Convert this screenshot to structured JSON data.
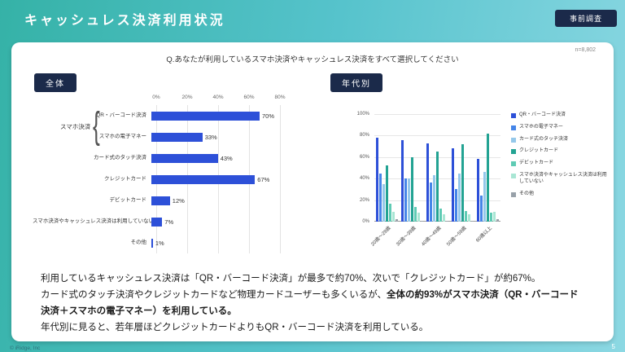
{
  "header": {
    "title": "キャッシュレス決済利用状況",
    "badge": "事前調査"
  },
  "card": {
    "question": "Q.あなたが利用しているスマホ決済やキャッシュレス決済をすべて選択してください",
    "sample": "n=8,802",
    "left_badge": "全体",
    "right_badge": "年代別"
  },
  "chart_data": [
    {
      "type": "bar",
      "orientation": "horizontal",
      "title": "全体",
      "group_label": "スマホ決済",
      "categories": [
        "QR・バーコード決済",
        "スマホの電子マネー",
        "カード式のタッチ決済",
        "クレジットカード",
        "デビットカード",
        "スマホ決済やキャッシュレス決済は利用していない",
        "その他"
      ],
      "values": [
        70,
        33,
        43,
        67,
        12,
        7,
        1
      ],
      "xlim": [
        0,
        80
      ],
      "xticks": [
        "0%",
        "20%",
        "40%",
        "60%",
        "80%"
      ],
      "bar_color": "#2d50d8",
      "grid": true
    },
    {
      "type": "bar",
      "orientation": "vertical-grouped",
      "title": "年代別",
      "categories": [
        "20歳～29歳",
        "30歳～39歳",
        "40歳～49歳",
        "50歳～59歳",
        "60歳以上"
      ],
      "series": [
        {
          "name": "QR・バーコード決済",
          "color": "#2d50d8",
          "values": [
            78,
            76,
            73,
            68,
            58
          ]
        },
        {
          "name": "スマホの電子マネー",
          "color": "#4585e8",
          "values": [
            45,
            40,
            36,
            30,
            24
          ]
        },
        {
          "name": "カード式のタッチ決済",
          "color": "#95c8ea",
          "values": [
            35,
            40,
            43,
            45,
            46
          ]
        },
        {
          "name": "クレジットカード",
          "color": "#23a393",
          "values": [
            52,
            60,
            65,
            72,
            82
          ]
        },
        {
          "name": "デビットカード",
          "color": "#5fcbb4",
          "values": [
            17,
            14,
            12,
            10,
            8
          ]
        },
        {
          "name": "スマホ決済やキャッシュレス決済は利用していない",
          "color": "#a9e6d4",
          "values": [
            9,
            8,
            7,
            7,
            9
          ]
        },
        {
          "name": "その他",
          "color": "#98a1a9",
          "values": [
            2,
            1,
            1,
            1,
            2
          ]
        }
      ],
      "ylim": [
        0,
        100
      ],
      "yticks": [
        "100%",
        "80%",
        "60%",
        "40%",
        "20%",
        "0%"
      ],
      "legend_position": "right",
      "grid": true
    }
  ],
  "summary": {
    "line1": "利用しているキャッシュレス決済は「QR・バーコード決済」が最多で約70%、次いで「クレジットカード」が約67%。",
    "line2_normal": "カード式のタッチ決済やクレジットカードなど物理カードユーザーも多くいるが、",
    "line2_bold": "全体の約93%がスマホ決済（QR・バーコード決済＋スマホの電子マネー）を利用している。",
    "line3": "年代別に見ると、若年層ほどクレジットカードよりもQR・バーコード決済を利用している。"
  },
  "footer": {
    "copyright": "© iRidge, Inc",
    "page": "5"
  }
}
